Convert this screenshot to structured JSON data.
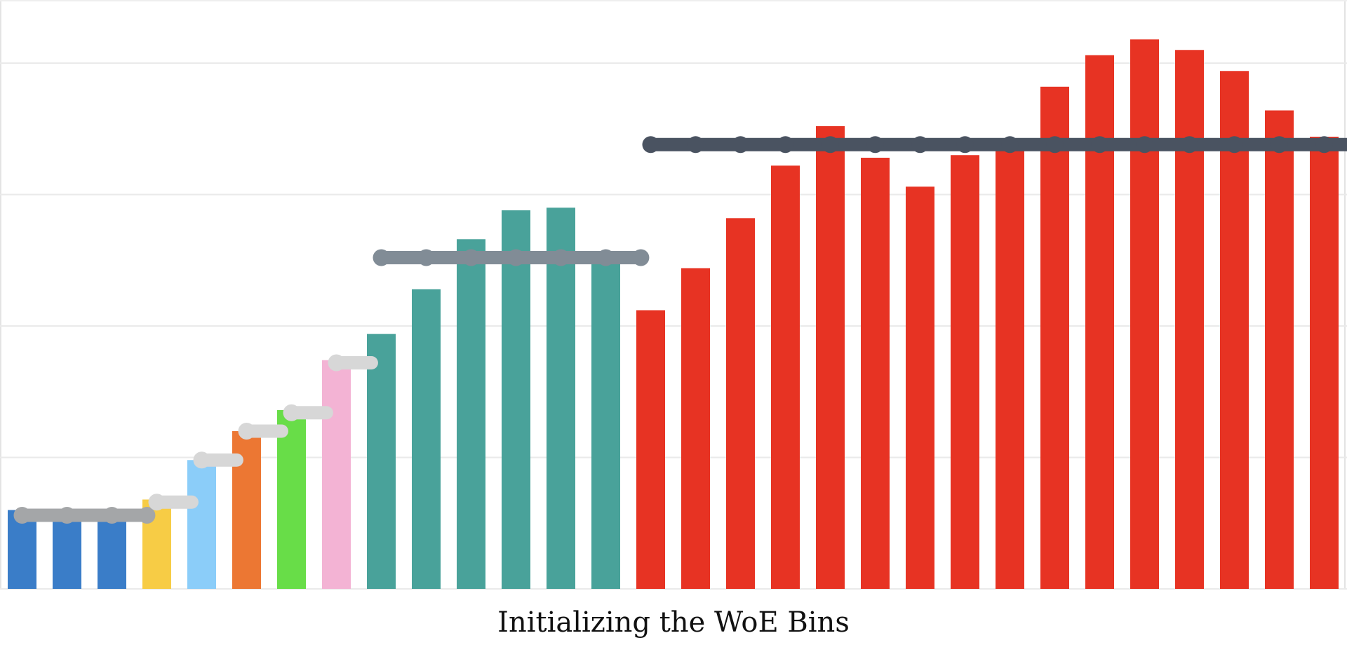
{
  "chart_data": {
    "type": "bar",
    "title": "Initializing the WoE Bins",
    "xlabel": "",
    "ylabel": "",
    "ylim": [
      0,
      2.2
    ],
    "grid": true,
    "legend": "none",
    "values": [
      0.3,
      0.3,
      0.3,
      0.34,
      0.49,
      0.6,
      0.68,
      0.87,
      0.97,
      1.14,
      1.33,
      1.44,
      1.45,
      1.27,
      1.06,
      1.22,
      1.41,
      1.61,
      1.76,
      1.64,
      1.53,
      1.65,
      1.69,
      1.91,
      2.03,
      2.09,
      2.05,
      1.97,
      1.82,
      1.72
    ],
    "bar_colors": [
      "#3a7dc8",
      "#3a7dc8",
      "#3a7dc8",
      "#f7cc45",
      "#8bcdf9",
      "#ec7733",
      "#68dd48",
      "#f3b3d4",
      "#49a29a",
      "#49a29a",
      "#49a29a",
      "#49a29a",
      "#49a29a",
      "#49a29a",
      "#e73323",
      "#e73323",
      "#e73323",
      "#e73323",
      "#e73323",
      "#e73323",
      "#e73323",
      "#e73323",
      "#e73323",
      "#e73323",
      "#e73323",
      "#e73323",
      "#e73323",
      "#e73323",
      "#e73323",
      "#e73323"
    ],
    "bin_lines": [
      {
        "start": 0,
        "end": 2,
        "value": 0.28,
        "color": "#a4a6a8"
      },
      {
        "start": 3,
        "end": 3,
        "value": 0.33,
        "color": "#d7d7d7"
      },
      {
        "start": 4,
        "end": 4,
        "value": 0.49,
        "color": "#d7d7d7"
      },
      {
        "start": 5,
        "end": 5,
        "value": 0.6,
        "color": "#d7d7d7"
      },
      {
        "start": 6,
        "end": 6,
        "value": 0.67,
        "color": "#d7d7d7"
      },
      {
        "start": 7,
        "end": 7,
        "value": 0.86,
        "color": "#d7d7d7"
      },
      {
        "start": 8,
        "end": 13,
        "value": 1.26,
        "color": "#818c96"
      },
      {
        "start": 14,
        "end": 29,
        "value": 1.69,
        "color": "#4a5361"
      }
    ]
  }
}
